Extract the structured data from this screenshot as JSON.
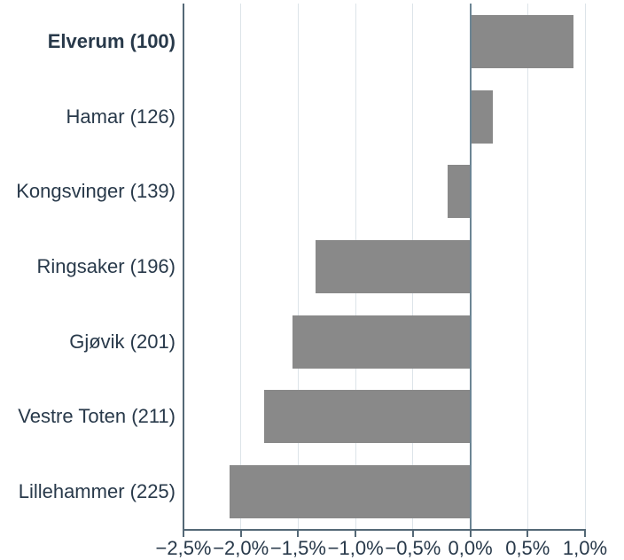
{
  "chart_data": {
    "type": "bar",
    "orientation": "horizontal",
    "title": "",
    "xlabel": "",
    "ylabel": "",
    "categories": [
      "Elverum (100)",
      "Hamar (126)",
      "Kongsvinger (139)",
      "Ringsaker (196)",
      "Gjøvik (201)",
      "Vestre Toten (211)",
      "Lillehammer (225)"
    ],
    "values": [
      0.9,
      0.2,
      -0.2,
      -1.35,
      -1.55,
      -1.8,
      -2.1
    ],
    "unit": "%",
    "emphasized_category": "Elverum (100)",
    "xlim": [
      -2.5,
      1.0
    ],
    "x_ticks": [
      -2.5,
      -2.0,
      -1.5,
      -1.0,
      -0.5,
      0.0,
      0.5,
      1.0
    ],
    "x_tick_labels": [
      "−2,5%",
      "−2,0%",
      "−1,5%",
      "−1,0%",
      "−0,5%",
      "0,0%",
      "0,5%",
      "1,0%"
    ],
    "grid": true,
    "legend": false,
    "colors": {
      "bar": "#898989",
      "axis": "#54ире"
    }
  }
}
